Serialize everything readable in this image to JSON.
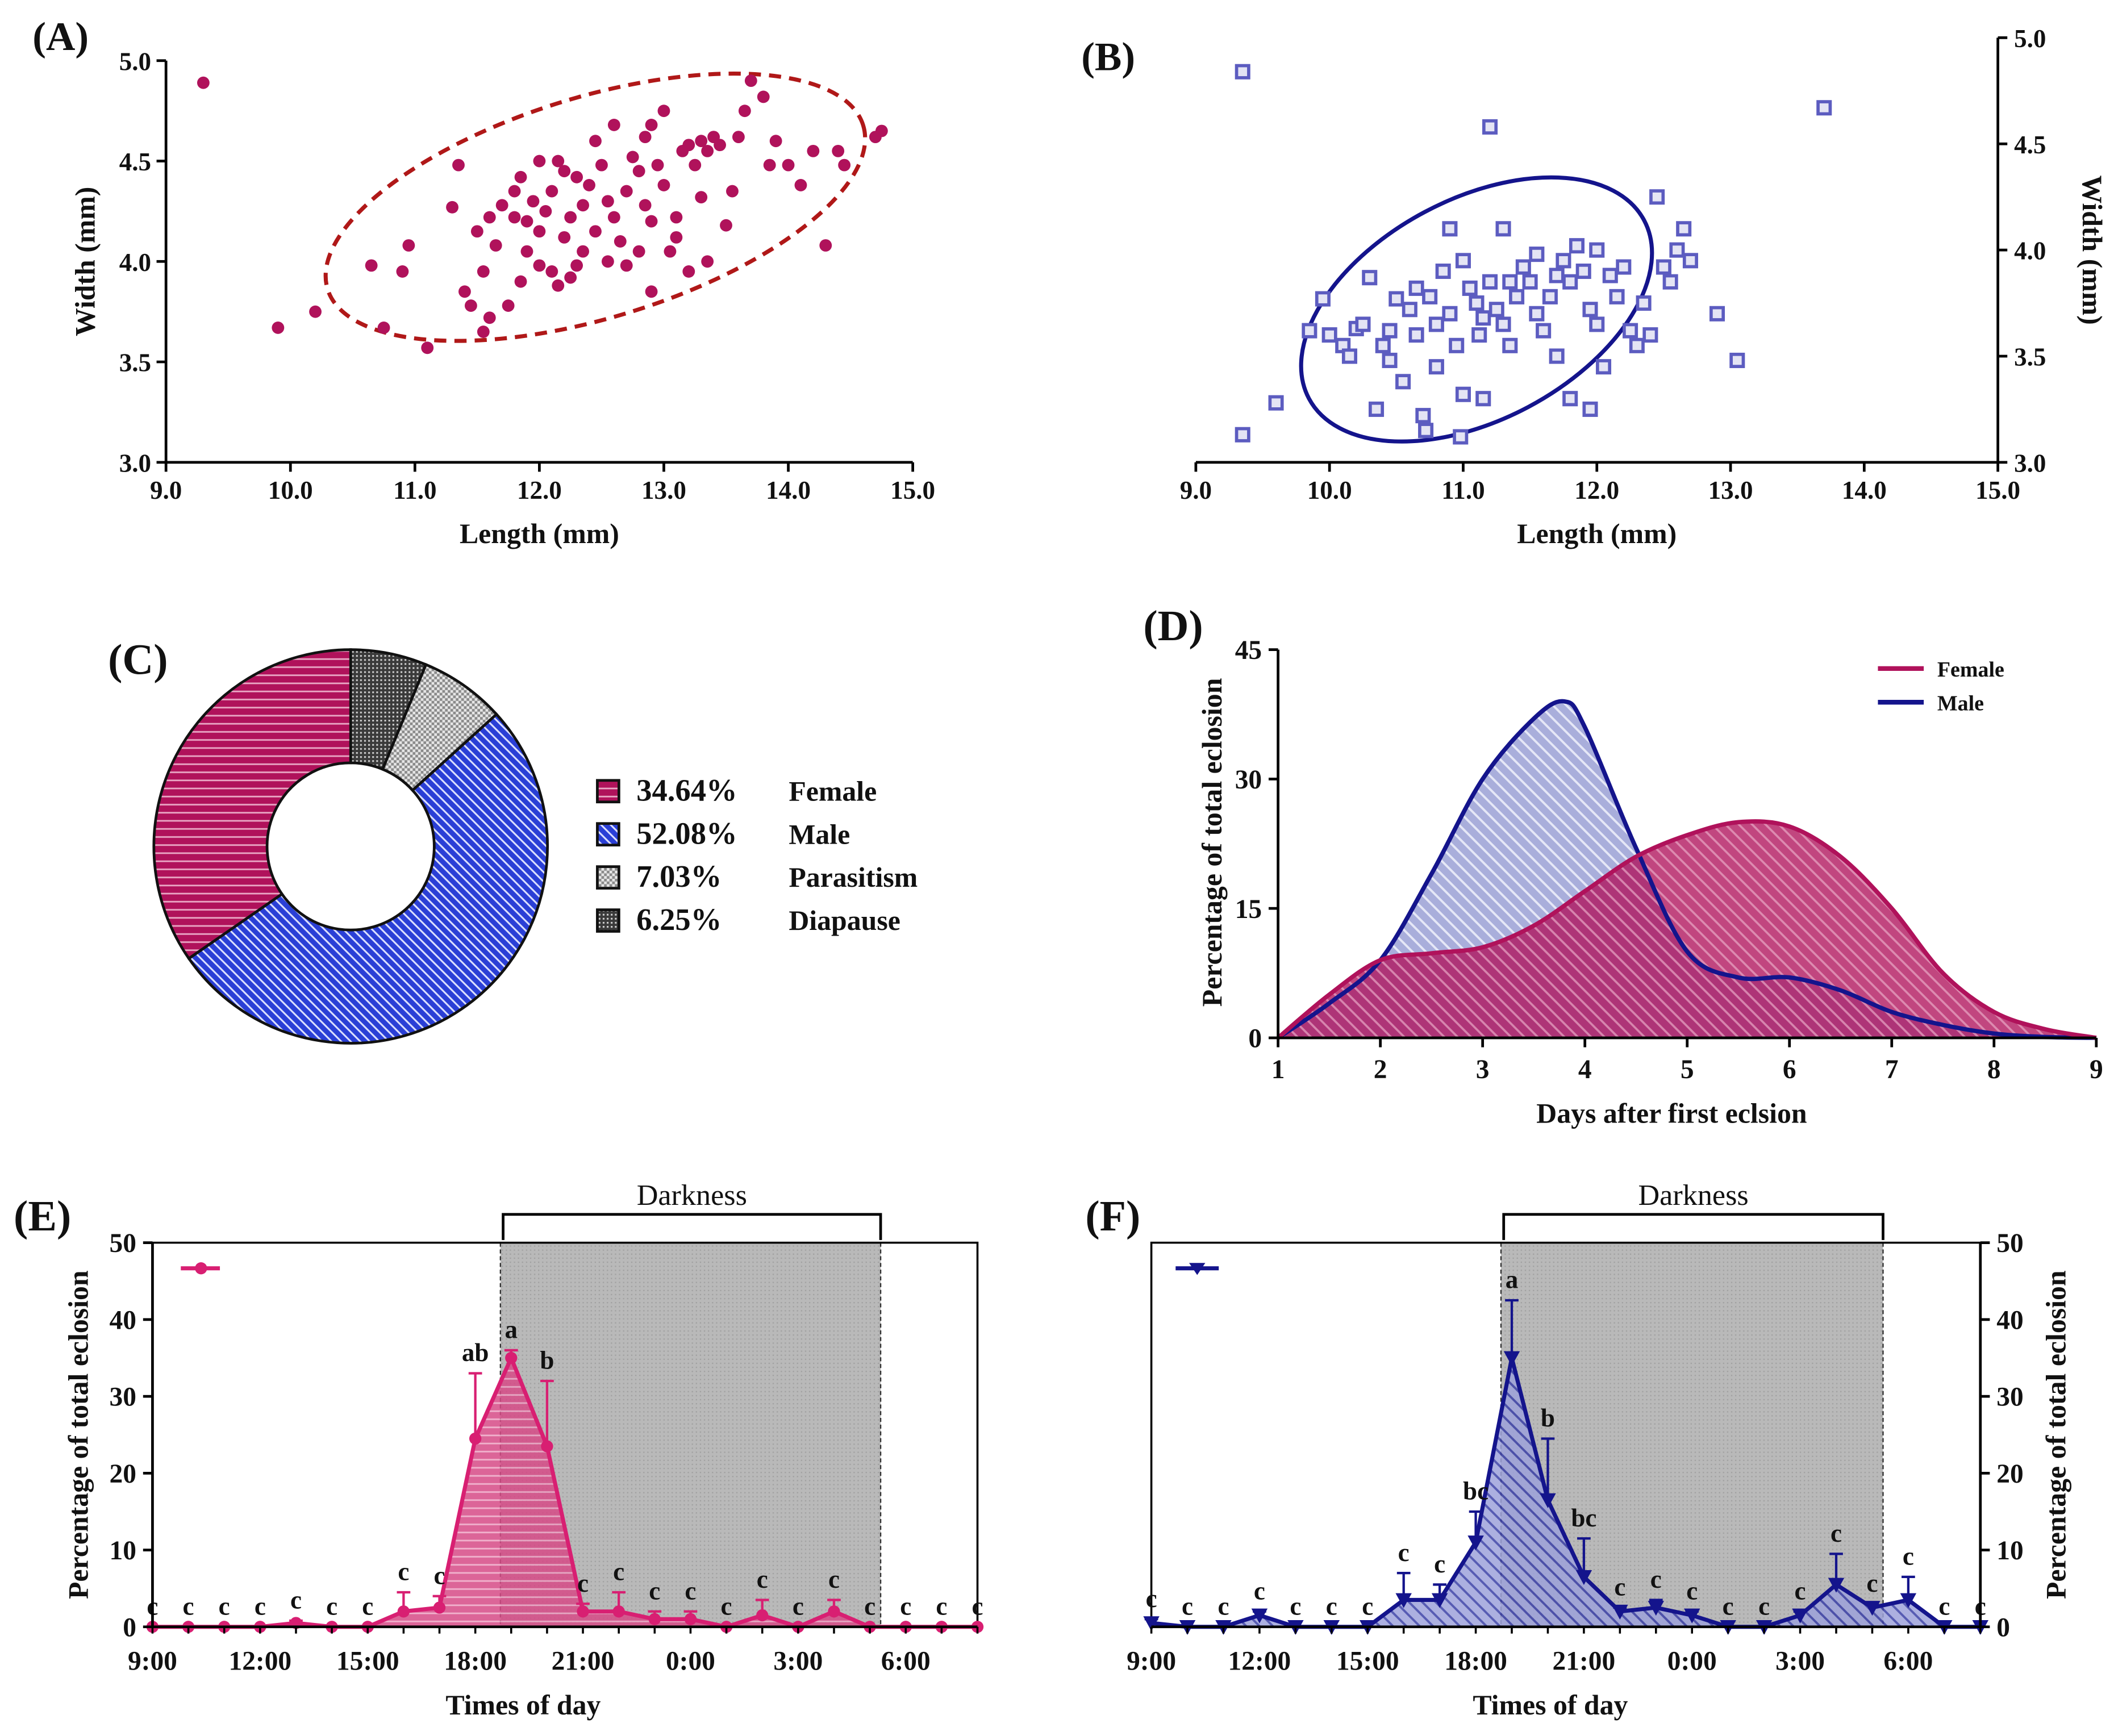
{
  "colors": {
    "female": "#B0125B",
    "female_fill": "#C8417D",
    "male": "#14148C",
    "male_point": "#5C5CC0",
    "male_fill": "#B6B9E0",
    "dark_shade": "#B8B8B8",
    "pink_line": "#D81F72"
  },
  "chart_data": [
    {
      "id": "A",
      "type": "scatter",
      "panel_label": "(A)",
      "xlabel": "Length (mm)",
      "ylabel": "Width (mm)",
      "xlim": [
        9.0,
        15.0
      ],
      "ylim": [
        3.0,
        5.0
      ],
      "xticks": [
        "9.0",
        "10.0",
        "11.0",
        "12.0",
        "13.0",
        "14.0",
        "15.0"
      ],
      "yticks": [
        "3.0",
        "3.5",
        "4.0",
        "4.5",
        "5.0"
      ],
      "ellipse": {
        "cx": 12.45,
        "cy": 4.27,
        "rx": 2.25,
        "ry": 0.55,
        "rotation_deg": -17
      },
      "points": [
        [
          9.3,
          4.89
        ],
        [
          9.9,
          3.67
        ],
        [
          10.2,
          3.75
        ],
        [
          10.75,
          3.67
        ],
        [
          11.1,
          3.57
        ],
        [
          10.65,
          3.98
        ],
        [
          10.9,
          3.95
        ],
        [
          10.95,
          4.08
        ],
        [
          11.3,
          4.27
        ],
        [
          11.35,
          4.48
        ],
        [
          11.4,
          3.85
        ],
        [
          11.45,
          3.78
        ],
        [
          11.55,
          3.65
        ],
        [
          11.6,
          3.72
        ],
        [
          11.55,
          3.95
        ],
        [
          11.6,
          4.22
        ],
        [
          11.65,
          4.08
        ],
        [
          11.7,
          4.28
        ],
        [
          11.8,
          4.35
        ],
        [
          11.85,
          4.42
        ],
        [
          11.8,
          4.22
        ],
        [
          11.9,
          4.2
        ],
        [
          11.95,
          4.3
        ],
        [
          11.9,
          4.05
        ],
        [
          11.85,
          3.9
        ],
        [
          12.0,
          3.98
        ],
        [
          12.05,
          4.25
        ],
        [
          12.1,
          4.35
        ],
        [
          12.15,
          4.5
        ],
        [
          12.2,
          4.45
        ],
        [
          12.1,
          3.95
        ],
        [
          12.15,
          3.88
        ],
        [
          12.2,
          4.12
        ],
        [
          12.25,
          4.22
        ],
        [
          12.3,
          3.98
        ],
        [
          12.35,
          4.05
        ],
        [
          12.4,
          4.38
        ],
        [
          12.45,
          4.6
        ],
        [
          12.5,
          4.48
        ],
        [
          12.45,
          4.15
        ],
        [
          12.55,
          4.3
        ],
        [
          12.6,
          4.22
        ],
        [
          12.65,
          4.1
        ],
        [
          12.7,
          4.35
        ],
        [
          12.75,
          4.52
        ],
        [
          12.8,
          4.45
        ],
        [
          12.85,
          4.62
        ],
        [
          12.9,
          4.68
        ],
        [
          12.95,
          4.48
        ],
        [
          12.8,
          4.05
        ],
        [
          12.7,
          3.98
        ],
        [
          12.85,
          4.28
        ],
        [
          12.9,
          4.2
        ],
        [
          13.0,
          4.38
        ],
        [
          13.05,
          4.05
        ],
        [
          13.1,
          4.12
        ],
        [
          13.15,
          4.55
        ],
        [
          13.2,
          4.58
        ],
        [
          13.25,
          4.48
        ],
        [
          13.3,
          4.6
        ],
        [
          13.35,
          4.55
        ],
        [
          13.4,
          4.62
        ],
        [
          13.45,
          4.58
        ],
        [
          13.3,
          4.32
        ],
        [
          13.35,
          4.0
        ],
        [
          13.2,
          3.95
        ],
        [
          13.5,
          4.18
        ],
        [
          13.55,
          4.35
        ],
        [
          13.6,
          4.62
        ],
        [
          13.65,
          4.75
        ],
        [
          13.7,
          4.9
        ],
        [
          13.8,
          4.82
        ],
        [
          13.85,
          4.48
        ],
        [
          13.9,
          4.6
        ],
        [
          14.0,
          4.48
        ],
        [
          14.1,
          4.38
        ],
        [
          14.2,
          4.55
        ],
        [
          14.3,
          4.08
        ],
        [
          14.4,
          4.55
        ],
        [
          14.45,
          4.48
        ],
        [
          14.7,
          4.62
        ],
        [
          14.75,
          4.65
        ],
        [
          13.0,
          4.75
        ],
        [
          12.55,
          4.0
        ],
        [
          12.3,
          4.42
        ],
        [
          11.75,
          3.78
        ],
        [
          12.0,
          4.15
        ],
        [
          12.6,
          4.68
        ],
        [
          13.1,
          4.22
        ],
        [
          12.35,
          4.28
        ],
        [
          12.0,
          4.5
        ],
        [
          11.5,
          4.15
        ],
        [
          12.25,
          3.92
        ],
        [
          12.9,
          3.85
        ]
      ]
    },
    {
      "id": "B",
      "type": "scatter",
      "panel_label": "(B)",
      "xlabel": "Length (mm)",
      "ylabel": "Width (mm)",
      "xlim": [
        9.0,
        15.0
      ],
      "ylim": [
        3.0,
        5.0
      ],
      "xticks": [
        "9.0",
        "10.0",
        "11.0",
        "12.0",
        "13.0",
        "14.0",
        "15.0"
      ],
      "yticks": [
        "3.0",
        "3.5",
        "4.0",
        "4.5",
        "5.0"
      ],
      "ellipse": {
        "cx": 11.1,
        "cy": 3.72,
        "rx": 1.42,
        "ry": 0.52,
        "rotation_deg": -28
      },
      "points": [
        [
          9.35,
          4.84
        ],
        [
          11.2,
          4.58
        ],
        [
          13.7,
          4.67
        ],
        [
          9.35,
          3.13
        ],
        [
          9.6,
          3.28
        ],
        [
          9.85,
          3.62
        ],
        [
          9.95,
          3.77
        ],
        [
          10.1,
          3.55
        ],
        [
          10.15,
          3.5
        ],
        [
          10.2,
          3.63
        ],
        [
          10.3,
          3.87
        ],
        [
          10.35,
          3.25
        ],
        [
          10.4,
          3.55
        ],
        [
          10.45,
          3.62
        ],
        [
          10.5,
          3.77
        ],
        [
          10.55,
          3.38
        ],
        [
          10.6,
          3.72
        ],
        [
          10.65,
          3.6
        ],
        [
          10.7,
          3.22
        ],
        [
          10.72,
          3.15
        ],
        [
          10.75,
          3.78
        ],
        [
          10.8,
          3.65
        ],
        [
          10.85,
          3.9
        ],
        [
          10.9,
          3.7
        ],
        [
          10.95,
          3.55
        ],
        [
          10.98,
          3.12
        ],
        [
          11.0,
          3.32
        ],
        [
          11.05,
          3.82
        ],
        [
          11.1,
          3.75
        ],
        [
          11.12,
          3.6
        ],
        [
          11.15,
          3.3
        ],
        [
          11.2,
          3.85
        ],
        [
          11.25,
          3.72
        ],
        [
          11.3,
          3.65
        ],
        [
          11.35,
          3.55
        ],
        [
          11.4,
          3.78
        ],
        [
          11.45,
          3.92
        ],
        [
          11.5,
          3.85
        ],
        [
          11.55,
          3.7
        ],
        [
          11.6,
          3.62
        ],
        [
          11.65,
          3.78
        ],
        [
          11.7,
          3.88
        ],
        [
          11.75,
          3.95
        ],
        [
          11.8,
          3.85
        ],
        [
          11.85,
          4.02
        ],
        [
          11.9,
          3.9
        ],
        [
          11.95,
          3.72
        ],
        [
          12.0,
          3.65
        ],
        [
          12.05,
          3.45
        ],
        [
          12.1,
          3.88
        ],
        [
          12.15,
          3.78
        ],
        [
          12.2,
          3.92
        ],
        [
          12.25,
          3.62
        ],
        [
          12.3,
          3.55
        ],
        [
          12.35,
          3.75
        ],
        [
          12.4,
          3.6
        ],
        [
          12.45,
          4.25
        ],
        [
          12.5,
          3.92
        ],
        [
          12.55,
          3.85
        ],
        [
          12.6,
          4.0
        ],
        [
          12.65,
          4.1
        ],
        [
          12.7,
          3.95
        ],
        [
          12.9,
          3.7
        ],
        [
          13.05,
          3.48
        ],
        [
          11.3,
          4.1
        ],
        [
          10.9,
          4.1
        ],
        [
          10.0,
          3.6
        ],
        [
          11.8,
          3.3
        ],
        [
          11.95,
          3.25
        ],
        [
          10.25,
          3.65
        ],
        [
          11.0,
          3.95
        ],
        [
          10.8,
          3.45
        ],
        [
          11.55,
          3.98
        ],
        [
          11.15,
          3.68
        ],
        [
          10.65,
          3.82
        ],
        [
          11.7,
          3.5
        ],
        [
          12.0,
          4.0
        ],
        [
          10.45,
          3.48
        ],
        [
          11.35,
          3.85
        ]
      ]
    },
    {
      "id": "C",
      "type": "pie",
      "panel_label": "(C)",
      "slices": [
        {
          "label": "Female",
          "percent_text": "34.64%",
          "value": 34.64
        },
        {
          "label": "Male",
          "percent_text": "52.08%",
          "value": 52.08
        },
        {
          "label": "Parasitism",
          "percent_text": "7.03%",
          "value": 7.03
        },
        {
          "label": "Diapause",
          "percent_text": "6.25%",
          "value": 6.25
        }
      ]
    },
    {
      "id": "D",
      "type": "area",
      "panel_label": "(D)",
      "xlabel": "Days after first eclsion",
      "ylabel": "Percentage of total eclosion",
      "xlim": [
        1,
        9
      ],
      "ylim": [
        0,
        45
      ],
      "xticks": [
        "1",
        "2",
        "3",
        "4",
        "5",
        "6",
        "7",
        "8",
        "9"
      ],
      "yticks": [
        "0",
        "15",
        "30",
        "45"
      ],
      "series": [
        {
          "name": "Female",
          "x": [
            1,
            1.5,
            2,
            2.5,
            3,
            3.5,
            4,
            4.5,
            5,
            5.5,
            6,
            6.5,
            7,
            7.5,
            8,
            8.5,
            9
          ],
          "y": [
            0,
            5,
            9,
            9.8,
            10.5,
            13,
            17,
            21,
            23.5,
            25,
            24.5,
            21,
            15,
            7.5,
            3,
            1,
            0
          ]
        },
        {
          "name": "Male",
          "x": [
            1,
            1.5,
            2,
            2.5,
            3,
            3.5,
            3.8,
            4,
            4.5,
            5,
            5.5,
            6,
            6.5,
            7,
            7.5,
            8,
            8.5,
            9
          ],
          "y": [
            0,
            4,
            9,
            19,
            30,
            37,
            39,
            36,
            22,
            10,
            7,
            7,
            5.5,
            3,
            1.5,
            0.5,
            0.1,
            0
          ]
        }
      ]
    },
    {
      "id": "E",
      "type": "line",
      "panel_label": "(E)",
      "xlabel": "Times of day",
      "ylabel": "Percentage of total eclosion",
      "xlim": [
        9,
        32
      ],
      "ylim": [
        0,
        50
      ],
      "xticks": [
        {
          "label": "9:00",
          "x": 9
        },
        {
          "label": "12:00",
          "x": 12
        },
        {
          "label": "15:00",
          "x": 15
        },
        {
          "label": "18:00",
          "x": 18
        },
        {
          "label": "21:00",
          "x": 21
        },
        {
          "label": "0:00",
          "x": 24
        },
        {
          "label": "3:00",
          "x": 27
        },
        {
          "label": "6:00",
          "x": 30
        }
      ],
      "yticks": [
        "0",
        "10",
        "20",
        "30",
        "40",
        "50"
      ],
      "darkness_label": "Darkness",
      "darkness_range": [
        18.7,
        29.3
      ],
      "x": [
        9,
        10,
        11,
        12,
        13,
        14,
        15,
        16,
        17,
        18,
        19,
        20,
        21,
        22,
        23,
        24,
        25,
        26,
        27,
        28,
        29,
        30,
        31,
        32
      ],
      "y": [
        0,
        0,
        0,
        0,
        0.5,
        0,
        0,
        2,
        2.5,
        24.5,
        35,
        23.5,
        2,
        2,
        1,
        1,
        0,
        1.5,
        0,
        2,
        0,
        0,
        0,
        0
      ],
      "err": [
        0,
        0,
        0,
        0,
        0.3,
        0,
        0,
        2.5,
        1.5,
        8.5,
        1,
        8.5,
        1,
        2.5,
        1,
        1,
        0,
        2,
        0,
        1.5,
        0,
        0,
        0,
        0
      ],
      "letters": [
        "c",
        "c",
        "c",
        "c",
        "c",
        "c",
        "c",
        "c",
        "c",
        "ab",
        "a",
        "b",
        "c",
        "c",
        "c",
        "c",
        "c",
        "c",
        "c",
        "c",
        "c",
        "c",
        "c",
        "c"
      ]
    },
    {
      "id": "F",
      "type": "line",
      "panel_label": "(F)",
      "xlabel": "Times of day",
      "ylabel": "Percentage of total eclosion",
      "xlim": [
        9,
        32
      ],
      "ylim": [
        0,
        50
      ],
      "xticks": [
        {
          "label": "9:00",
          "x": 9
        },
        {
          "label": "12:00",
          "x": 12
        },
        {
          "label": "15:00",
          "x": 15
        },
        {
          "label": "18:00",
          "x": 18
        },
        {
          "label": "21:00",
          "x": 21
        },
        {
          "label": "0:00",
          "x": 24
        },
        {
          "label": "3:00",
          "x": 27
        },
        {
          "label": "6:00",
          "x": 30
        }
      ],
      "yticks": [
        "0",
        "10",
        "20",
        "30",
        "40",
        "50"
      ],
      "darkness_label": "Darkness",
      "darkness_range": [
        18.7,
        29.3
      ],
      "x": [
        9,
        10,
        11,
        12,
        13,
        14,
        15,
        16,
        17,
        18,
        19,
        20,
        21,
        22,
        23,
        24,
        25,
        26,
        27,
        28,
        29,
        30,
        31,
        32
      ],
      "y": [
        0.5,
        0,
        0,
        1.5,
        0,
        0,
        0,
        3.5,
        3.5,
        11,
        35,
        16.5,
        6.5,
        2,
        2.5,
        1.5,
        0,
        0,
        1.5,
        5.5,
        2.5,
        3.5,
        0,
        0
      ],
      "err": [
        0.5,
        0,
        0,
        0.5,
        0,
        0,
        0,
        3.5,
        2,
        4,
        7.5,
        8,
        5,
        0.5,
        1,
        0.5,
        0,
        0,
        0.5,
        4,
        0.5,
        3,
        0,
        0
      ],
      "letters": [
        "c",
        "c",
        "c",
        "c",
        "c",
        "c",
        "c",
        "c",
        "c",
        "bc",
        "a",
        "b",
        "bc",
        "c",
        "c",
        "c",
        "c",
        "c",
        "c",
        "c",
        "c",
        "c",
        "c",
        "c"
      ]
    }
  ]
}
